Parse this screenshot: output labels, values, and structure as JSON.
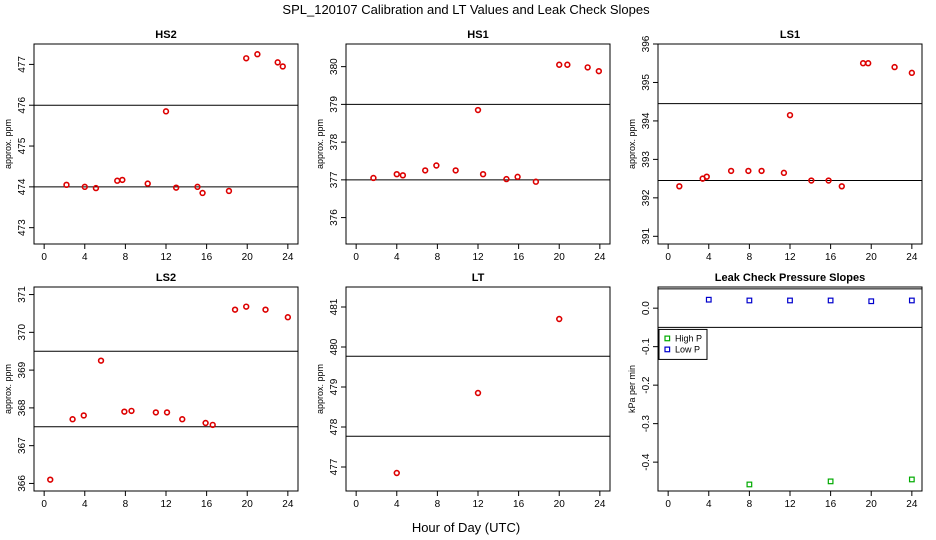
{
  "page": {
    "title": "SPL_120107  Calibration and LT Values and Leak Check Slopes",
    "xlabel": "Hour of Day (UTC)"
  },
  "chart_data": [
    {
      "type": "scatter",
      "title": "HS2",
      "ylabel": "approx. ppm",
      "xlim": [
        -1,
        25
      ],
      "ylim": [
        472.6,
        477.5
      ],
      "xticks": [
        0,
        4,
        8,
        12,
        16,
        20,
        24
      ],
      "yticks": [
        473,
        474,
        475,
        476,
        477
      ],
      "hlines": [
        474,
        476
      ],
      "series": [
        {
          "name": "values",
          "color": "#dd0000",
          "x": [
            2.2,
            4,
            5.1,
            7.2,
            7.7,
            10.2,
            12,
            13,
            15.1,
            15.6,
            18.2,
            19.9,
            21,
            23,
            23.5
          ],
          "y": [
            474.05,
            474.0,
            473.97,
            474.15,
            474.17,
            474.08,
            475.85,
            473.98,
            474.0,
            473.85,
            473.9,
            477.15,
            477.25,
            477.05,
            476.95
          ]
        }
      ]
    },
    {
      "type": "scatter",
      "title": "HS1",
      "ylabel": "approx. ppm",
      "xlim": [
        -1,
        25
      ],
      "ylim": [
        375.3,
        380.6
      ],
      "xticks": [
        0,
        4,
        8,
        12,
        16,
        20,
        24
      ],
      "yticks": [
        376,
        377,
        378,
        379,
        380
      ],
      "hlines": [
        377,
        379
      ],
      "series": [
        {
          "name": "values",
          "color": "#dd0000",
          "x": [
            1.7,
            4,
            4.6,
            6.8,
            7.9,
            9.8,
            12,
            12.5,
            14.8,
            15.9,
            17.7,
            20,
            20.8,
            22.8,
            23.9
          ],
          "y": [
            377.05,
            377.15,
            377.12,
            377.25,
            377.38,
            377.25,
            378.85,
            377.15,
            377.02,
            377.08,
            376.95,
            380.05,
            380.05,
            379.98,
            379.88
          ]
        }
      ]
    },
    {
      "type": "scatter",
      "title": "LS1",
      "ylabel": "approx. ppm",
      "xlim": [
        -1,
        25
      ],
      "ylim": [
        390.8,
        396.0
      ],
      "xticks": [
        0,
        4,
        8,
        12,
        16,
        20,
        24
      ],
      "yticks": [
        391,
        392,
        393,
        394,
        395,
        396
      ],
      "hlines": [
        392.45,
        394.45
      ],
      "series": [
        {
          "name": "values",
          "color": "#dd0000",
          "x": [
            1.1,
            3.4,
            3.8,
            6.2,
            7.9,
            9.2,
            11.4,
            12,
            14.1,
            15.8,
            17.1,
            19.2,
            19.7,
            22.3,
            24
          ],
          "y": [
            392.3,
            392.5,
            392.55,
            392.7,
            392.7,
            392.7,
            392.65,
            394.15,
            392.45,
            392.45,
            392.3,
            395.5,
            395.5,
            395.4,
            395.25
          ]
        }
      ]
    },
    {
      "type": "scatter",
      "title": "LS2",
      "ylabel": "approx. ppm",
      "xlim": [
        -1,
        25
      ],
      "ylim": [
        365.8,
        371.2
      ],
      "xticks": [
        0,
        4,
        8,
        12,
        16,
        20,
        24
      ],
      "yticks": [
        366,
        367,
        368,
        369,
        370,
        371
      ],
      "hlines": [
        367.5,
        369.5
      ],
      "series": [
        {
          "name": "values",
          "color": "#dd0000",
          "x": [
            0.6,
            2.8,
            3.9,
            5.6,
            7.9,
            8.6,
            11,
            12.1,
            13.6,
            15.9,
            16.6,
            18.8,
            19.9,
            21.8,
            24
          ],
          "y": [
            366.1,
            367.7,
            367.8,
            369.25,
            367.9,
            367.92,
            367.88,
            367.88,
            367.7,
            367.6,
            367.55,
            370.6,
            370.68,
            370.6,
            370.4
          ]
        }
      ]
    },
    {
      "type": "scatter",
      "title": "LT",
      "ylabel": "approx. ppm",
      "xlim": [
        -1,
        25
      ],
      "ylim": [
        476.4,
        481.5
      ],
      "xticks": [
        0,
        4,
        8,
        12,
        16,
        20,
        24
      ],
      "yticks": [
        477,
        478,
        479,
        480,
        481
      ],
      "hlines": [
        477.77,
        479.77
      ],
      "series": [
        {
          "name": "values",
          "color": "#dd0000",
          "x": [
            4,
            12,
            20
          ],
          "y": [
            476.85,
            478.85,
            480.7
          ]
        }
      ]
    },
    {
      "type": "scatter",
      "title": "Leak Check Pressure Slopes",
      "ylabel": "kPa per min",
      "xlim": [
        -1,
        25
      ],
      "ylim": [
        -0.475,
        0.055
      ],
      "xticks": [
        0,
        4,
        8,
        12,
        16,
        20,
        24
      ],
      "yticks": [
        -0.4,
        -0.3,
        -0.2,
        -0.1,
        0.0
      ],
      "ytick_labels": [
        "-0.4",
        "-0.3",
        "-0.2",
        "-0.1",
        "0.0"
      ],
      "hlines": [
        0.05,
        -0.05
      ],
      "legend": {
        "position": "left",
        "entries": [
          "High P",
          "Low P"
        ]
      },
      "series": [
        {
          "name": "High P",
          "color": "#00aa00",
          "x": [
            8,
            16,
            24
          ],
          "y": [
            -0.458,
            -0.45,
            -0.445
          ]
        },
        {
          "name": "Low P",
          "color": "#0000cc",
          "x": [
            4,
            8,
            12,
            16,
            20,
            24
          ],
          "y": [
            0.022,
            0.02,
            0.02,
            0.02,
            0.018,
            0.02
          ]
        }
      ]
    }
  ]
}
